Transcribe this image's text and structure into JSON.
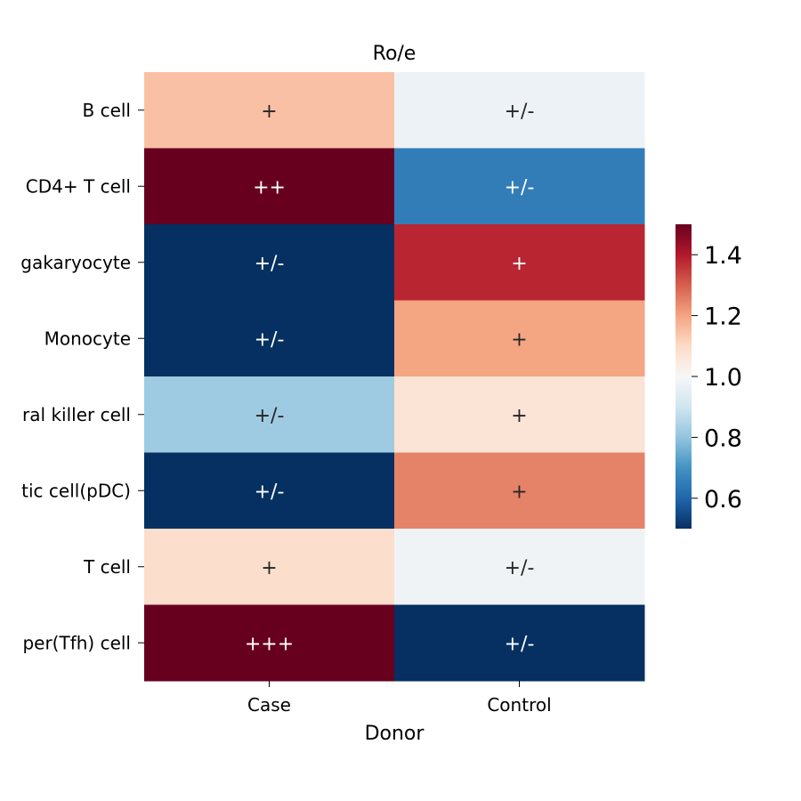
{
  "chart_data": {
    "type": "heatmap",
    "title": "Ro/e",
    "xlabel": "Donor",
    "ylabel": "",
    "x_categories": [
      "Case",
      "Control"
    ],
    "y_categories": [
      "B cell",
      "CD4+ T cell",
      "gakaryocyte",
      "Monocyte",
      "ral killer cell",
      "tic cell(pDC)",
      "T cell",
      "per(Tfh) cell"
    ],
    "values": [
      [
        1.15,
        0.97
      ],
      [
        1.6,
        0.65
      ],
      [
        0.4,
        1.38
      ],
      [
        0.4,
        1.2
      ],
      [
        0.82,
        1.07
      ],
      [
        0.4,
        1.25
      ],
      [
        1.09,
        0.98
      ],
      [
        1.75,
        0.3
      ]
    ],
    "annotations": [
      [
        "+",
        "+/-"
      ],
      [
        "++",
        "+/-"
      ],
      [
        "+/-",
        "+"
      ],
      [
        "+/-",
        "+"
      ],
      [
        "+/-",
        "+"
      ],
      [
        "+/-",
        "+"
      ],
      [
        "+",
        "+/-"
      ],
      [
        "+++",
        "+/-"
      ]
    ],
    "colormap": "RdBu_r",
    "colorbar": {
      "vmin": 0.5,
      "vmax": 1.5,
      "ticks": [
        0.6,
        0.8,
        1.0,
        1.2,
        1.4
      ],
      "tick_labels": [
        "0.6",
        "0.8",
        "1.0",
        "1.2",
        "1.4"
      ]
    },
    "colorbar_stops": [
      "#053061",
      "#2166ac",
      "#4393c3",
      "#92c5de",
      "#d1e5f0",
      "#f7f7f7",
      "#fddbc7",
      "#f4a582",
      "#d6604d",
      "#b2182b",
      "#67001f"
    ]
  }
}
